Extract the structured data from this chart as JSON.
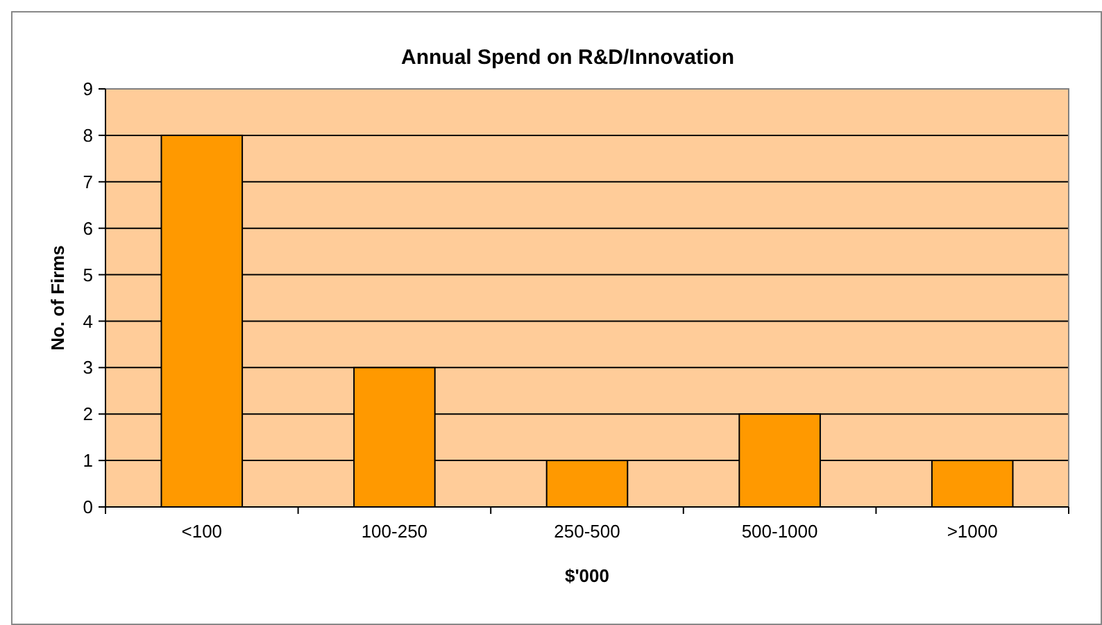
{
  "chart_data": {
    "type": "bar",
    "title": "Annual Spend on R&D/Innovation",
    "xlabel": "$'000",
    "ylabel": "No. of Firms",
    "categories": [
      "<100",
      "100-250",
      "250-500",
      "500-1000",
      ">1000"
    ],
    "values": [
      8,
      3,
      1,
      2,
      1
    ],
    "color": "#ff9900",
    "ylim": [
      0,
      9
    ],
    "yticks": [
      0,
      1,
      2,
      3,
      4,
      5,
      6,
      7,
      8,
      9
    ],
    "grid": "y"
  }
}
